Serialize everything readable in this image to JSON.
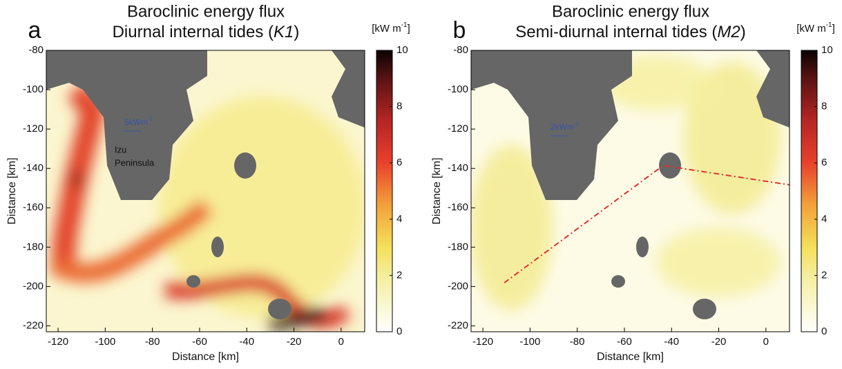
{
  "chart_data": [
    {
      "type": "heatmap",
      "panel_label": "a",
      "title": "Baroclinic energy flux",
      "subtitle": [
        "Diurnal internal tides (",
        "K1",
        ")"
      ],
      "xlabel": "Distance [km]",
      "ylabel": "Distance [km]",
      "xlim": [
        -125,
        10
      ],
      "xticks": [
        -120,
        -100,
        -80,
        -60,
        -40,
        -20,
        0
      ],
      "ylim": [
        -223,
        -80
      ],
      "yticks": [
        -80,
        -100,
        -120,
        -140,
        -160,
        -180,
        -200,
        -220
      ],
      "colorbar_label": [
        "[kW m",
        "-1",
        "]"
      ],
      "clim": [
        0,
        10
      ],
      "cticks": [
        0,
        2,
        4,
        6,
        8,
        10
      ],
      "scale_label": [
        "5kWm",
        "-1"
      ],
      "annotations": [
        "Izu",
        "Peninsula"
      ]
    },
    {
      "type": "heatmap",
      "panel_label": "b",
      "title": "Baroclinic energy flux",
      "subtitle": [
        "Semi-diurnal internal tides (",
        "M2",
        ")"
      ],
      "xlabel": "Distance [km]",
      "ylabel": "Distance [km]",
      "xlim": [
        -125,
        10
      ],
      "xticks": [
        -120,
        -100,
        -80,
        -60,
        -40,
        -20,
        0
      ],
      "ylim": [
        -223,
        -80
      ],
      "yticks": [
        -80,
        -100,
        -120,
        -140,
        -160,
        -180,
        -200,
        -220
      ],
      "colorbar_label": [
        "[kW m",
        "-1",
        "]"
      ],
      "clim": [
        0,
        10
      ],
      "cticks": [
        0,
        2,
        4,
        6,
        8,
        10
      ],
      "scale_label": [
        "2kWm",
        "-1"
      ],
      "annotations": []
    }
  ]
}
